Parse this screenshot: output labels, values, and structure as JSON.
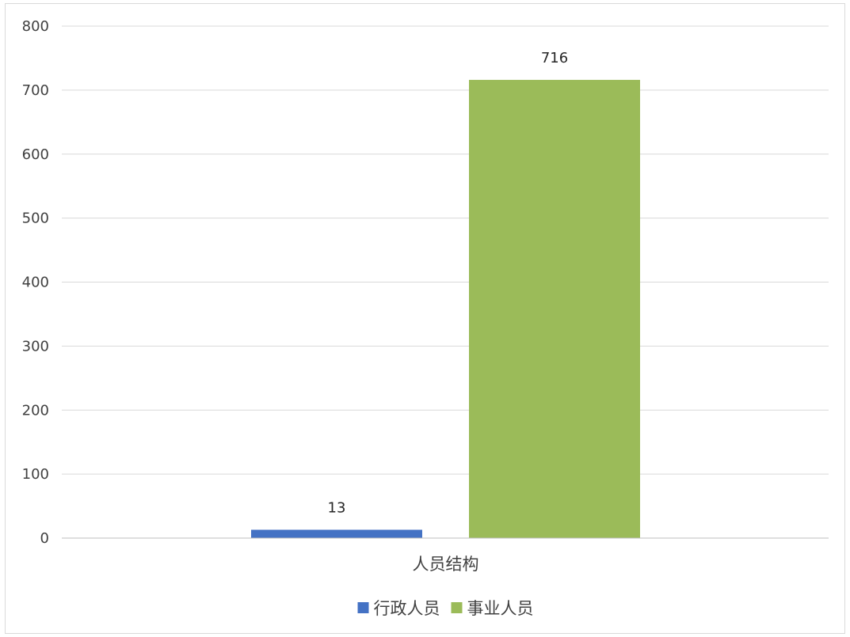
{
  "chart_data": {
    "type": "bar",
    "categories": [
      "人员结构"
    ],
    "series": [
      {
        "name": "行政人员",
        "values": [
          13
        ],
        "color": "#4472c4"
      },
      {
        "name": "事业人员",
        "values": [
          716
        ],
        "color": "#9bbb59"
      }
    ],
    "title": "",
    "xlabel": "",
    "ylabel": "",
    "ylim": [
      0,
      800
    ],
    "yticks": [
      0,
      100,
      200,
      300,
      400,
      500,
      600,
      700,
      800
    ],
    "grid": true,
    "data_labels": true,
    "legend_position": "bottom"
  }
}
